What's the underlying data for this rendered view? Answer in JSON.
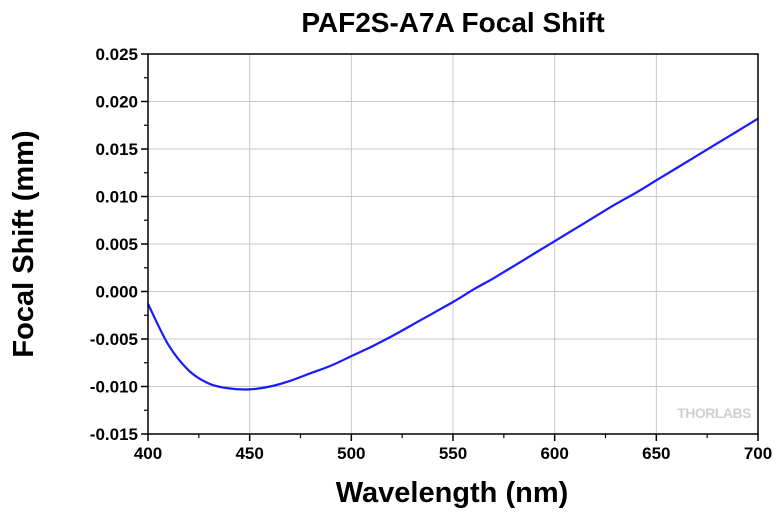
{
  "chart_data": {
    "type": "line",
    "title": "PAF2S-A7A Focal Shift",
    "xlabel": "Wavelength (nm)",
    "ylabel": "Focal Shift (mm)",
    "xlim": [
      400,
      700
    ],
    "ylim": [
      -0.015,
      0.025
    ],
    "x_ticks": [
      "400",
      "450",
      "500",
      "550",
      "600",
      "650",
      "700"
    ],
    "y_ticks": [
      "-0.015",
      "-0.010",
      "-0.005",
      "0.000",
      "0.005",
      "0.010",
      "0.015",
      "0.020",
      "0.025"
    ],
    "grid": true,
    "series": [
      {
        "color": "#1a1aff",
        "x": [
          400,
          410,
          420,
          430,
          440,
          450,
          460,
          470,
          480,
          490,
          500,
          510,
          520,
          530,
          540,
          550,
          560,
          570,
          580,
          590,
          600,
          610,
          620,
          630,
          640,
          650,
          660,
          670,
          680,
          690,
          700
        ],
        "y": [
          -0.0013,
          -0.0056,
          -0.0083,
          -0.0097,
          -0.0102,
          -0.0103,
          -0.01,
          -0.0094,
          -0.0086,
          -0.0078,
          -0.0068,
          -0.0058,
          -0.0047,
          -0.0035,
          -0.0023,
          -0.0011,
          0.0002,
          0.0014,
          0.0027,
          0.004,
          0.0053,
          0.0066,
          0.0079,
          0.0092,
          0.0104,
          0.0117,
          0.013,
          0.0143,
          0.0156,
          0.0169,
          0.0182
        ]
      }
    ],
    "watermark": "THORLABS"
  }
}
